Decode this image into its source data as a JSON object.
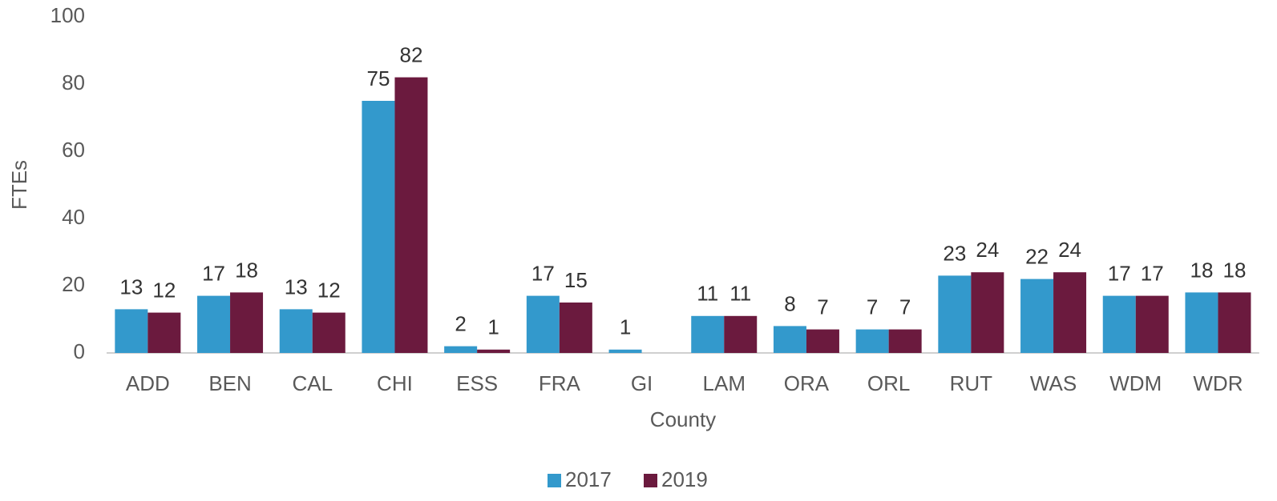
{
  "chart_data": {
    "type": "bar",
    "x_label": "County",
    "y_label": "FTEs",
    "categories": [
      "ADD",
      "BEN",
      "CAL",
      "CHI",
      "ESS",
      "FRA",
      "GI",
      "LAM",
      "ORA",
      "ORL",
      "RUT",
      "WAS",
      "WDM",
      "WDR"
    ],
    "series": [
      {
        "name": "2017",
        "color": "#3399cc",
        "values": [
          13,
          17,
          13,
          75,
          2,
          17,
          1,
          11,
          8,
          7,
          23,
          22,
          17,
          18
        ]
      },
      {
        "name": "2019",
        "color": "#6b1a3e",
        "values": [
          12,
          18,
          12,
          82,
          1,
          15,
          null,
          11,
          7,
          7,
          24,
          24,
          17,
          18
        ]
      }
    ],
    "ylim": [
      0,
      100
    ],
    "yticks": [
      0,
      20,
      40,
      60,
      80,
      100
    ],
    "grid": false,
    "legend": "bottom"
  }
}
